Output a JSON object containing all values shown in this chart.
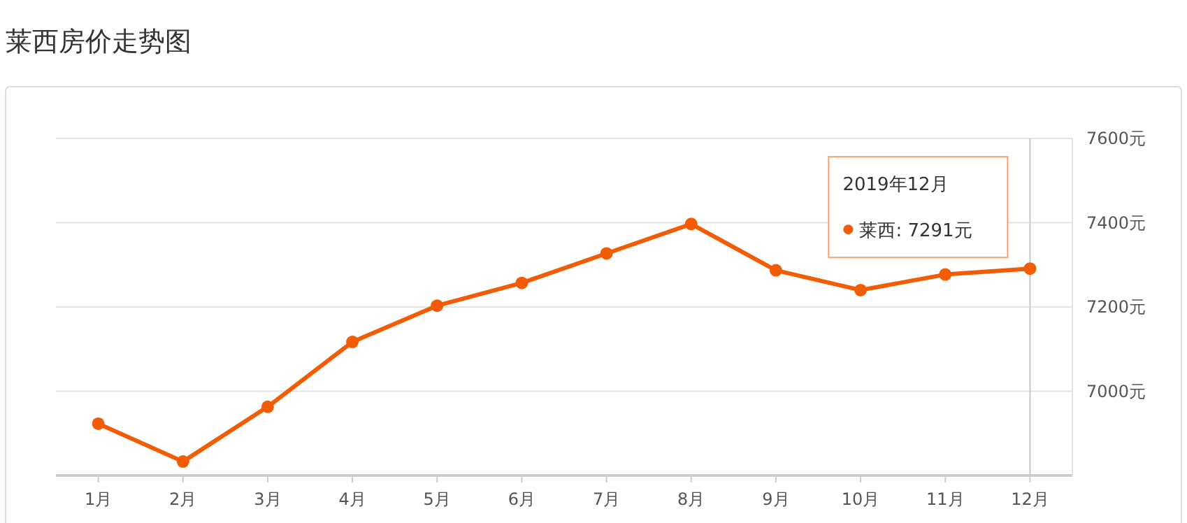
{
  "chart_data": {
    "type": "line",
    "title": "莱西房价走势图",
    "categories": [
      "1月",
      "2月",
      "3月",
      "4月",
      "5月",
      "6月",
      "7月",
      "8月",
      "9月",
      "10月",
      "11月",
      "12月"
    ],
    "series": [
      {
        "color": "#f25c05",
        "values": [
          6923,
          6833,
          6963,
          7117,
          7203,
          7257,
          7327,
          7397,
          7287,
          7240,
          7277,
          7291
        ]
      }
    ],
    "ylim": [
      6800,
      7600
    ],
    "yticks": [
      {
        "value": 7000,
        "label": "7000元"
      },
      {
        "value": 7200,
        "label": "7200元"
      },
      {
        "value": 7400,
        "label": "7400元"
      },
      {
        "value": 7600,
        "label": "7600元"
      }
    ],
    "grid": "y",
    "marker": "circle",
    "line_style": "solid",
    "annotations": [
      "2019年12月",
      "莱西: 7291元"
    ],
    "ref_lines": [
      {
        "axis": "x",
        "value": "12月",
        "color": "#c8c8c8"
      }
    ]
  }
}
